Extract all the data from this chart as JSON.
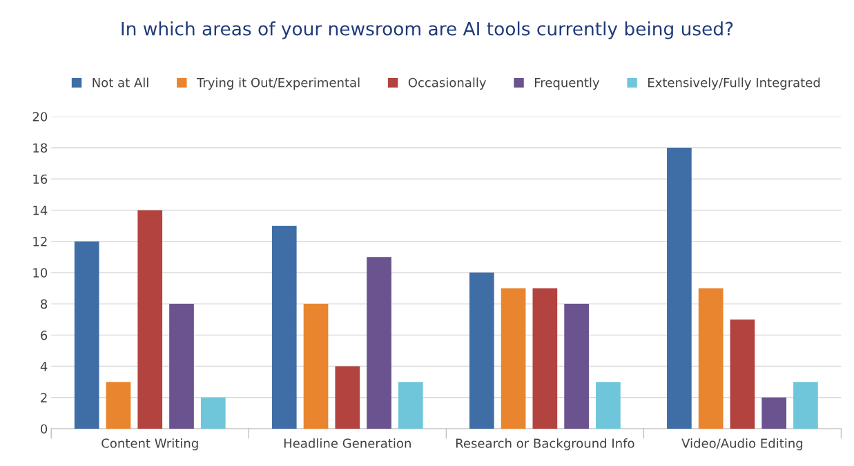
{
  "chart_data": {
    "type": "bar",
    "title": "In which areas of your newsroom are AI tools currently being used?",
    "categories": [
      "Content Writing",
      "Headline Generation",
      "Research or Background Info",
      "Video/Audio Editing"
    ],
    "series": [
      {
        "name": "Not at All",
        "color": "#3f6ea6",
        "values": [
          12,
          13,
          10,
          18
        ]
      },
      {
        "name": "Trying it Out/Experimental",
        "color": "#e8852e",
        "values": [
          3,
          8,
          9,
          9
        ]
      },
      {
        "name": "Occasionally",
        "color": "#b3433f",
        "values": [
          14,
          4,
          9,
          7
        ]
      },
      {
        "name": "Frequently",
        "color": "#6a538e",
        "values": [
          8,
          11,
          8,
          2
        ]
      },
      {
        "name": "Extensively/Fully Integrated",
        "color": "#6fc6da",
        "values": [
          2,
          3,
          3,
          3
        ]
      }
    ],
    "ylim": [
      0,
      20
    ],
    "yticks": [
      0,
      2,
      4,
      6,
      8,
      10,
      12,
      14,
      16,
      18,
      20
    ],
    "grid": "y",
    "legend": "top"
  }
}
